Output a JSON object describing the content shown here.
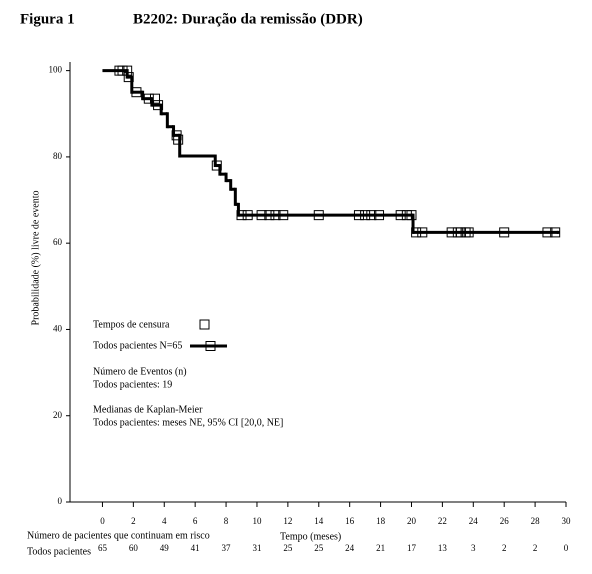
{
  "chart_data": {
    "type": "step",
    "figure_label": "Figura 1",
    "title": "B2202: Duração da remissão (DDR)",
    "x_label": "Tempo (meses)",
    "y_label": "Probabilidade (%) livre de evento",
    "xlim": [
      -2.1,
      30
    ],
    "ylim": [
      0,
      102
    ],
    "xticks": [
      0,
      2,
      4,
      6,
      8,
      10,
      12,
      14,
      16,
      18,
      20,
      22,
      24,
      26,
      28,
      30
    ],
    "yticks": [
      0,
      20,
      40,
      60,
      80,
      100
    ],
    "series": [
      {
        "name": "Todos pacientes N=65",
        "color": "#000000",
        "x": [
          0,
          1.6,
          1.9,
          2.6,
          3.2,
          3.8,
          4.2,
          4.6,
          5.0,
          7.3,
          7.6,
          8.0,
          8.3,
          8.6,
          8.8,
          20.1,
          29.5
        ],
        "values": [
          100,
          98.5,
          95,
          93.5,
          92,
          90,
          87,
          85,
          80.2,
          78,
          76,
          74.5,
          72.5,
          69,
          66.5,
          62.5,
          62.5
        ]
      }
    ],
    "censor": {
      "name": "Tempos de censura",
      "x": [
        1.1,
        1.3,
        1.6,
        1.7,
        2.2,
        3.0,
        3.4,
        3.6,
        4.8,
        4.9,
        7.4,
        9.0,
        9.4,
        10.3,
        10.8,
        11.2,
        11.7,
        14.0,
        16.6,
        17.0,
        17.4,
        17.9,
        19.3,
        19.7,
        20.0,
        20.3,
        20.7,
        22.6,
        23.0,
        23.2,
        23.5,
        23.7,
        26.0,
        28.8,
        29.3
      ],
      "values": [
        100,
        100,
        100,
        98.5,
        95,
        93.5,
        93.5,
        92,
        85,
        84,
        78,
        66.5,
        66.5,
        66.5,
        66.5,
        66.5,
        66.5,
        66.5,
        66.5,
        66.5,
        66.5,
        66.5,
        66.5,
        66.5,
        66.5,
        62.5,
        62.5,
        62.5,
        62.5,
        62.5,
        62.5,
        62.5,
        62.5,
        62.5,
        62.5
      ]
    },
    "annotations": [
      "Número de Eventos (n)",
      "Todos pacientes: 19",
      "Medianas de Kaplan-Meier",
      "Todos pacientes: meses NE, 95% CI [20,0, NE]"
    ],
    "risk_table": {
      "title": "Número de pacientes que continuam em risco",
      "row_label": "Todos pacientes",
      "x": [
        0,
        2,
        4,
        6,
        8,
        10,
        12,
        14,
        16,
        18,
        20,
        22,
        24,
        26,
        28,
        30
      ],
      "values": [
        65,
        60,
        49,
        41,
        37,
        31,
        25,
        25,
        24,
        21,
        17,
        13,
        3,
        2,
        2,
        0
      ]
    }
  }
}
